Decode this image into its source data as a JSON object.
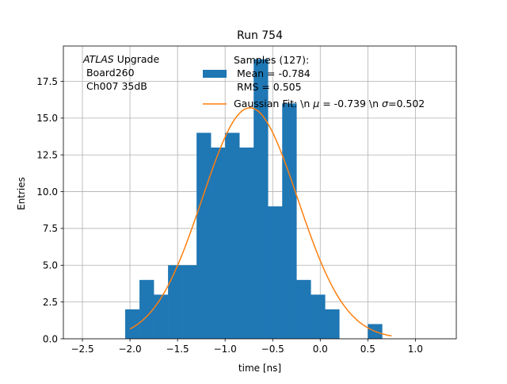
{
  "chart_data": {
    "type": "bar",
    "title": "Run 754",
    "xlabel": "time [ns]",
    "ylabel": "Entries",
    "xlim": [
      -2.7,
      1.43
    ],
    "ylim": [
      0,
      19.9
    ],
    "grid": true,
    "x_ticks": [
      -2.5,
      -2.0,
      -1.5,
      -1.0,
      -0.5,
      0.0,
      0.5,
      1.0
    ],
    "x_tick_labels": [
      "−2.5",
      "−2.0",
      "−1.5",
      "−1.0",
      "−0.5",
      "0.0",
      "0.5",
      "1.0"
    ],
    "y_ticks": [
      0,
      2.5,
      5,
      7.5,
      10,
      12.5,
      15,
      17.5
    ],
    "y_tick_labels": [
      "0.0",
      "2.5",
      "5.0",
      "7.5",
      "10.0",
      "12.5",
      "15.0",
      "17.5"
    ],
    "histogram": {
      "name": "Samples (127):\n Mean = -0.784\n RMS = 0.505",
      "color": "#1f77b4",
      "bin_edges": [
        -2.05,
        -1.9,
        -1.75,
        -1.6,
        -1.45,
        -1.3,
        -1.15,
        -1.0,
        -0.85,
        -0.7,
        -0.55,
        -0.4,
        -0.25,
        -0.1,
        0.05,
        0.2,
        0.35,
        0.5,
        0.65,
        0.8
      ],
      "counts": [
        2,
        4,
        3,
        5,
        5,
        14,
        13,
        14,
        13,
        19,
        9,
        16,
        4,
        3,
        2,
        0,
        0,
        1,
        0
      ]
    },
    "fit": {
      "name": "Gaussian Fit: \\n μ = -0.739 \\n σ=0.502",
      "color": "#ff7f0e",
      "mu": -0.739,
      "sigma": 0.502,
      "amplitude": 15.7,
      "x_range": [
        -2.0,
        0.75
      ]
    },
    "annotation": {
      "line1_italic": "ATLAS",
      "line1_rest": " Upgrade",
      "line2": " Board260",
      "line3": " Ch007 35dB"
    },
    "legend": {
      "placement": "top-right",
      "samples_lines": [
        "Samples (127):",
        " Mean = -0.784",
        " RMS = 0.505"
      ],
      "fit_prefix": "Gaussian Fit: \\n ",
      "fit_mu_symbol": "μ",
      "fit_mu_value": " = -0.739 \\n ",
      "fit_sigma_symbol": "σ",
      "fit_sigma_value": "=0.502"
    }
  }
}
